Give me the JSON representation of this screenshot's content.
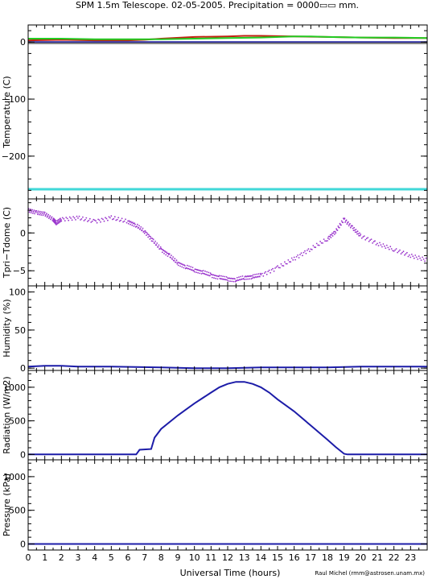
{
  "title": "SPM 1.5m Telescope. 02-05-2005. Precipitation = 0000▭▭ mm.",
  "xlabel": "Universal Time (hours)",
  "credit": "Raul Michel (rmm@astrosen.unam.mx)",
  "x_ticks": [
    "0",
    "1",
    "2",
    "3",
    "4",
    "5",
    "6",
    "7",
    "8",
    "9",
    "10",
    "11",
    "12",
    "13",
    "14",
    "15",
    "16",
    "17",
    "18",
    "19",
    "20",
    "21",
    "22",
    "23"
  ],
  "colors": {
    "red": "#c02010",
    "green": "#22cc22",
    "blue": "#1a1aa0",
    "gray": "#777777",
    "cyan": "#40d8d8",
    "purple": "#9933cc",
    "navy": "#1c1ca8"
  },
  "chart_data": [
    {
      "type": "line",
      "ylabel": "Temperature (C)",
      "ylim": [
        -275,
        30
      ],
      "yticks": [
        "0",
        "−100",
        "−200"
      ],
      "ytick_values": [
        0,
        -100,
        -200
      ],
      "series": [
        {
          "color": "#c02010",
          "x": [
            0,
            2,
            4,
            6,
            7,
            8,
            10,
            12,
            13,
            14,
            16,
            18,
            20,
            22,
            24
          ],
          "y": [
            3,
            4,
            3,
            3,
            4,
            6,
            9,
            10,
            11,
            11,
            10,
            9,
            8,
            7,
            7
          ]
        },
        {
          "color": "#22cc22",
          "x": [
            0,
            2,
            4,
            6,
            8,
            10,
            12,
            14,
            16,
            17,
            18,
            20,
            22,
            24
          ],
          "y": [
            6,
            6,
            5,
            5,
            5,
            6,
            7,
            8,
            10,
            10,
            9,
            8,
            8,
            7
          ]
        },
        {
          "color": "#1a1aa0",
          "x": [
            0,
            24
          ],
          "y": [
            0,
            0
          ]
        },
        {
          "color": "#777777",
          "x": [
            0,
            24
          ],
          "y": [
            -2,
            -2
          ]
        },
        {
          "color": "#40d8d8",
          "x": [
            0,
            24
          ],
          "y": [
            -258,
            -258
          ]
        }
      ]
    },
    {
      "type": "scatter",
      "ylabel": "Tpri−Tdome (C)",
      "ylim": [
        -7,
        4.5
      ],
      "yticks": [
        "0",
        "−5"
      ],
      "ytick_values": [
        0,
        -5
      ],
      "series": [
        {
          "color": "#9933cc",
          "x": [
            0,
            0.5,
            1,
            1.5,
            1.7,
            2,
            3,
            4,
            5,
            6,
            6.5,
            7,
            7.5,
            8,
            8.5,
            9,
            9.5,
            10,
            10.5,
            11,
            11.5,
            12,
            12.5,
            13,
            13.5,
            14,
            15,
            16,
            17,
            18,
            18.5,
            19,
            19.5,
            20,
            21,
            22,
            23,
            24
          ],
          "y": [
            3,
            2.7,
            2.5,
            1.8,
            1.3,
            1.8,
            2.0,
            1.5,
            2.0,
            1.5,
            1.0,
            0.2,
            -1.0,
            -2.2,
            -3.0,
            -4.0,
            -4.5,
            -4.9,
            -5.2,
            -5.6,
            -5.9,
            -6.1,
            -6.2,
            -5.9,
            -5.8,
            -5.6,
            -4.6,
            -3.4,
            -2.1,
            -0.8,
            0.2,
            1.8,
            0.7,
            -0.4,
            -1.4,
            -2.2,
            -3.0,
            -3.6
          ]
        }
      ]
    },
    {
      "type": "line",
      "ylabel": "Humidity (%)",
      "ylim": [
        -3,
        108
      ],
      "yticks": [
        "0",
        "50",
        "100"
      ],
      "ytick_values": [
        0,
        50,
        100
      ],
      "series": [
        {
          "color": "#1c1ca8",
          "x": [
            0,
            1,
            2,
            3,
            5,
            8,
            10,
            12,
            14,
            16,
            18,
            20,
            22,
            24
          ],
          "y": [
            2,
            3,
            3,
            2,
            2,
            1,
            0,
            0,
            1,
            1,
            1,
            2,
            2,
            2
          ]
        }
      ]
    },
    {
      "type": "line",
      "ylabel": "Radiation (W/m2)",
      "ylim": [
        -80,
        1250
      ],
      "yticks": [
        "0",
        "500",
        "1000"
      ],
      "ytick_values": [
        0,
        500,
        1000
      ],
      "series": [
        {
          "color": "#1c1ca8",
          "x": [
            0,
            6.5,
            6.7,
            7.4,
            7.6,
            8,
            9,
            10,
            11,
            11.5,
            12,
            12.5,
            13,
            13.5,
            14,
            14.5,
            15,
            16,
            17,
            18,
            18.5,
            19,
            19.2,
            24
          ],
          "y": [
            0,
            0,
            70,
            80,
            250,
            380,
            580,
            760,
            920,
            1000,
            1050,
            1080,
            1080,
            1050,
            1000,
            920,
            820,
            640,
            430,
            220,
            110,
            10,
            0,
            0
          ]
        }
      ]
    },
    {
      "type": "line",
      "ylabel": "Pressure (kPa)",
      "ylim": [
        -90,
        1250
      ],
      "yticks": [
        "0",
        "500",
        "1000"
      ],
      "ytick_values": [
        0,
        500,
        1000
      ],
      "series": [
        {
          "color": "#1c1ca8",
          "x": [
            0,
            24
          ],
          "y": [
            0,
            0
          ]
        }
      ]
    }
  ]
}
